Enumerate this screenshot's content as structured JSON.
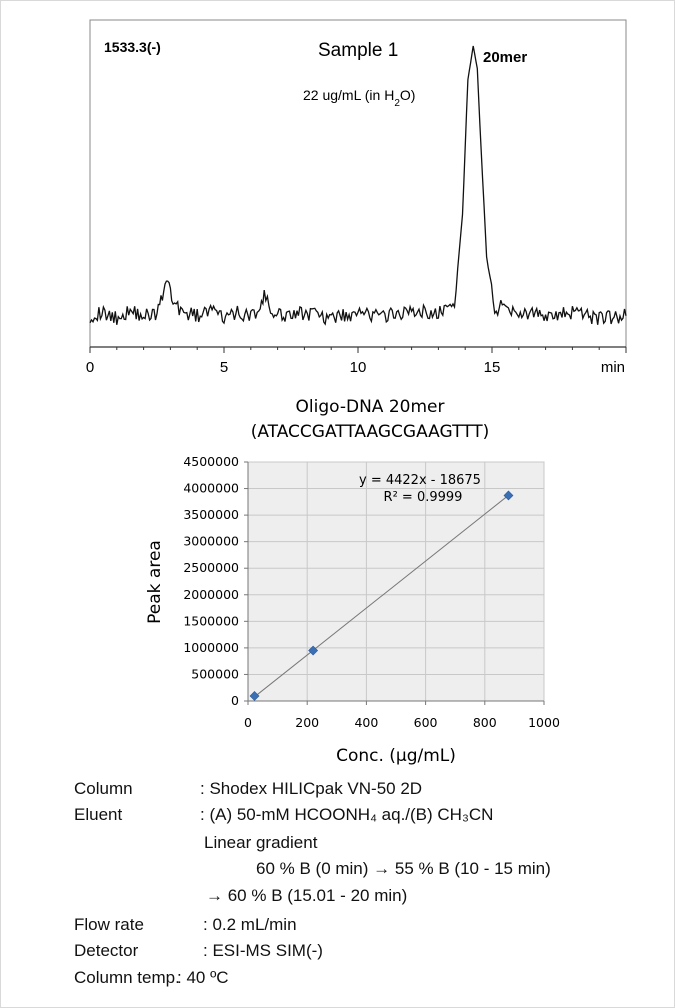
{
  "chromatogram": {
    "chart_data": {
      "type": "line",
      "mz_label": "1533.3(-)",
      "sample_label": "Sample 1",
      "concentration_note": "22 ug/mL (in H2O)",
      "peak_label": "20mer",
      "xlim": [
        0,
        20
      ],
      "x_ticks": [
        "0",
        "5",
        "10",
        "15"
      ],
      "x_unit": "min",
      "series": [
        {
          "x": [
            0,
            0.5,
            1,
            1.5,
            2,
            2.5,
            2.75,
            2.9,
            3.1,
            3.5,
            4,
            4.5,
            5,
            5.5,
            6,
            6.3,
            6.5,
            6.8,
            7,
            8,
            9,
            10,
            11,
            12,
            13,
            13.6,
            13.9,
            14.1,
            14.3,
            14.45,
            14.6,
            14.8,
            15.1,
            15.5,
            16,
            17,
            18,
            19,
            20
          ],
          "y": [
            4,
            5,
            3,
            6,
            4,
            5,
            12,
            18,
            9,
            5,
            4,
            6,
            3,
            5,
            4,
            6,
            11,
            5,
            4,
            5,
            3,
            5,
            4,
            6,
            5,
            8,
            40,
            88,
            100,
            92,
            62,
            25,
            6,
            8,
            5,
            4,
            5,
            3,
            4
          ]
        }
      ]
    }
  },
  "calibration": {
    "chart_data": {
      "type": "scatter",
      "title_line1": "Oligo-DNA 20mer",
      "title_line2": "(ATACCGATTAAGCGAAGTTT)",
      "xlabel": "Conc. (µg/mL)",
      "ylabel": "Peak area",
      "xlim": [
        0,
        1000
      ],
      "ylim": [
        0,
        4500000
      ],
      "x_ticks": [
        "0",
        "200",
        "400",
        "600",
        "800",
        "1000"
      ],
      "y_ticks": [
        "0",
        "500000",
        "1000000",
        "1500000",
        "2000000",
        "2500000",
        "3000000",
        "3500000",
        "4000000",
        "4500000"
      ],
      "points": [
        {
          "x": 22,
          "y": 95000
        },
        {
          "x": 220,
          "y": 950000
        },
        {
          "x": 880,
          "y": 3870000
        }
      ],
      "fit": {
        "slope": 4422,
        "intercept": -18675,
        "equation": "y = 4422x - 18675",
        "r2": "R² = 0.9999"
      },
      "colors": {
        "point": "#3a6fb5",
        "plot_bg": "#eeeeee",
        "line": "#777777"
      }
    }
  },
  "conditions": [
    {
      "key": "Column",
      "value": ": Shodex HILICpak VN-50 2D"
    },
    {
      "key": "Eluent",
      "value": ":  (A) 50-mM HCOONH₄ aq./(B) CH₃CN"
    },
    {
      "key": "",
      "value": "Linear gradient"
    },
    {
      "key": "",
      "value": "60 % B (0 min) → 55 % B (10 - 15 min)"
    },
    {
      "key": "",
      "value": "→ 60 % B (15.01 - 20 min)"
    },
    {
      "key": "Flow rate",
      "value": ": 0.2 mL/min"
    },
    {
      "key": "Detector",
      "value": ": ESI-MS SIM(-)"
    },
    {
      "key": "Column temp.",
      "value": ": 40 ºC"
    }
  ]
}
